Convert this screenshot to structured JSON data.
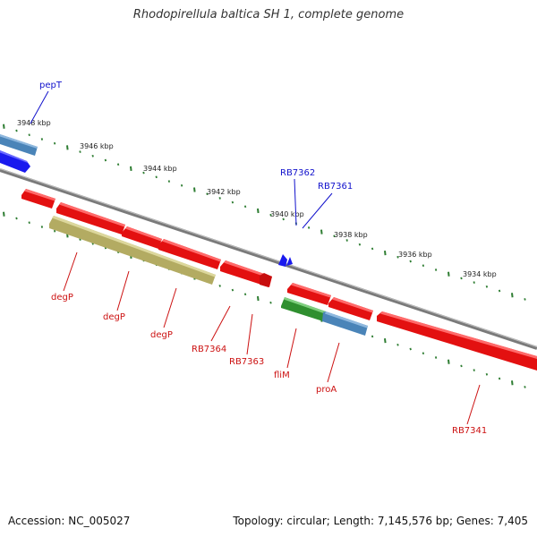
{
  "title": "Rhodopirellula baltica SH 1, complete genome",
  "accession": "Accession: NC_005027",
  "summary": "Topology: circular; Length: 7,145,576 bp; Genes: 7,405",
  "colors": {
    "backbone": "#8a8a8a",
    "tick": "#2e7d32",
    "red_gene": "#ee1111",
    "blue_gene": "#1a1aee",
    "steel_gene": "#4a84b8",
    "olive_gene": "#b9b26a",
    "green_gene": "#2f9a2f",
    "label_blue": "#1111cc",
    "label_red": "#cc1111"
  },
  "scale_labels": [
    "3948 kbp",
    "3946 kbp",
    "3944 kbp",
    "3942 kbp",
    "3940 kbp",
    "3938 kbp",
    "3936 kbp",
    "3934 kbp"
  ],
  "gene_labels": {
    "pepT": "pepT",
    "RB7362": "RB7362",
    "RB7361": "RB7361",
    "degP_1": "degP",
    "degP_2": "degP",
    "degP_3": "degP",
    "RB7364": "RB7364",
    "RB7363": "RB7363",
    "fliM": "fliM",
    "proA": "proA",
    "RB7341": "RB7341"
  }
}
